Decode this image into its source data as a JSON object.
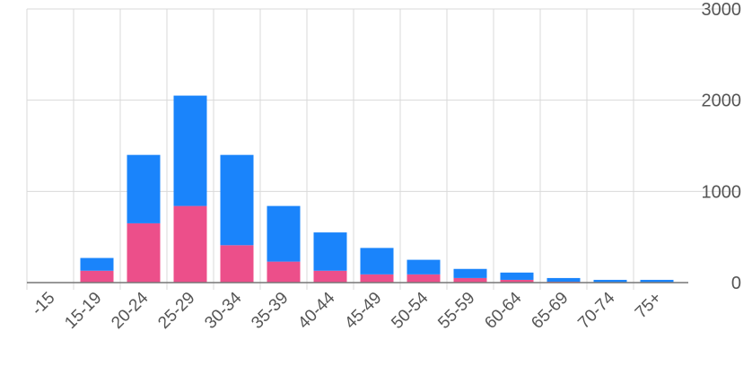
{
  "chart_data": {
    "type": "bar",
    "stacked": true,
    "title": "",
    "xlabel": "",
    "ylabel": "",
    "ylim": [
      0,
      3000
    ],
    "y_ticks": [
      0,
      1000,
      2000,
      3000
    ],
    "y_tick_labels": [
      "0",
      "1000",
      "2000",
      "3000"
    ],
    "y_axis_position": "right",
    "grid": true,
    "legend": "none",
    "categories": [
      "-15",
      "15-19",
      "20-24",
      "25-29",
      "30-34",
      "35-39",
      "40-44",
      "45-49",
      "50-54",
      "55-59",
      "60-64",
      "65-69",
      "70-74",
      "75+"
    ],
    "series": [
      {
        "color": "#ec4f8a",
        "values": [
          0,
          130,
          650,
          840,
          410,
          230,
          130,
          90,
          90,
          50,
          30,
          10,
          5,
          5
        ]
      },
      {
        "color": "#1a84fb",
        "values": [
          0,
          140,
          750,
          1210,
          990,
          610,
          420,
          290,
          160,
          100,
          80,
          40,
          25,
          25
        ]
      }
    ],
    "colors": {
      "grid": "#d9d9d9",
      "baseline": "#777777",
      "tick_text": "#555555"
    }
  }
}
